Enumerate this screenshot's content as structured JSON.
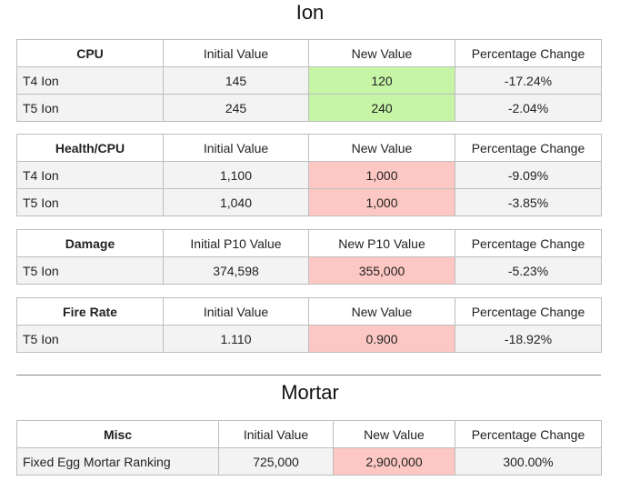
{
  "ion": {
    "title": "Ion",
    "tables": [
      {
        "headers": [
          "CPU",
          "Initial Value",
          "New Value",
          "Percentage Change"
        ],
        "rows": [
          [
            "T4 Ion",
            "145",
            "120",
            "-17.24%"
          ],
          [
            "T5 Ion",
            "245",
            "240",
            "-2.04%"
          ]
        ]
      },
      {
        "headers": [
          "Health/CPU",
          "Initial Value",
          "New Value",
          "Percentage Change"
        ],
        "rows": [
          [
            "T4 Ion",
            "1,100",
            "1,000",
            "-9.09%"
          ],
          [
            "T5 Ion",
            "1,040",
            "1,000",
            "-3.85%"
          ]
        ]
      },
      {
        "headers": [
          "Damage",
          "Initial P10 Value",
          "New P10 Value",
          "Percentage Change"
        ],
        "rows": [
          [
            "T5 Ion",
            "374,598",
            "355,000",
            "-5.23%"
          ]
        ]
      },
      {
        "headers": [
          "Fire Rate",
          "Initial Value",
          "New Value",
          "Percentage Change"
        ],
        "rows": [
          [
            "T5 Ion",
            "1.110",
            "0.900",
            "-18.92%"
          ]
        ]
      }
    ]
  },
  "mortar": {
    "title": "Mortar",
    "tables": [
      {
        "headers": [
          "Misc",
          "Initial Value",
          "New Value",
          "Percentage Change"
        ],
        "rows": [
          [
            "Fixed Egg Mortar Ranking",
            "725,000",
            "2,900,000",
            "300.00%"
          ]
        ]
      }
    ]
  },
  "colors": {
    "improved_highlight": "#c6f5a6",
    "worsened_highlight": "#fdc8c3"
  }
}
